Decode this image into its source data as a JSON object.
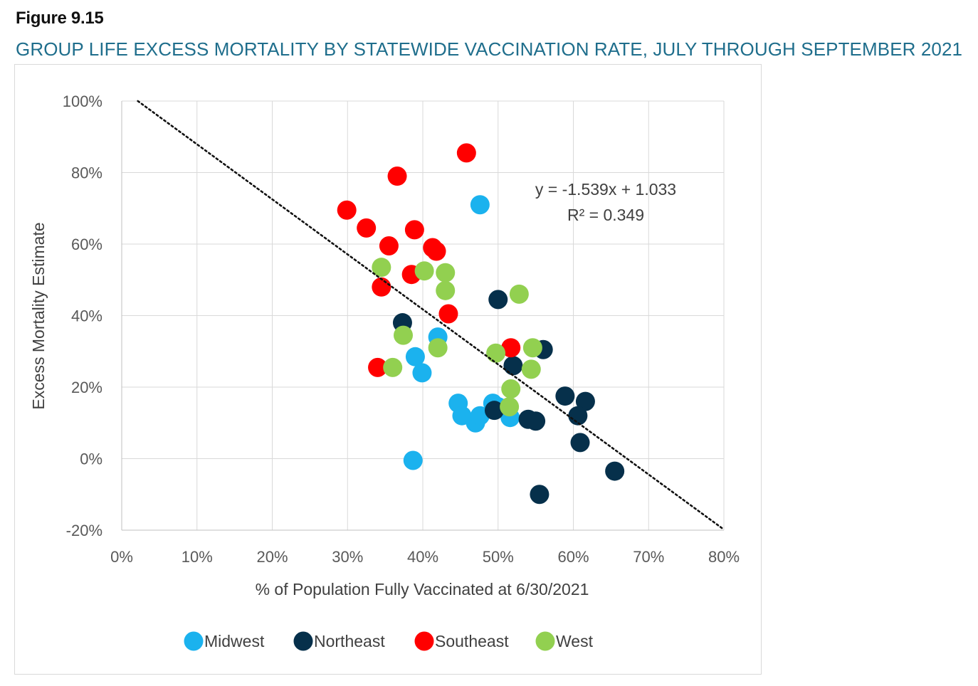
{
  "figure": {
    "label": "Figure 9.15",
    "title": "GROUP LIFE EXCESS MORTALITY BY STATEWIDE VACCINATION RATE, JULY THROUGH SEPTEMBER 2021"
  },
  "chart_data": {
    "type": "scatter",
    "title": "GROUP LIFE EXCESS MORTALITY BY STATEWIDE VACCINATION RATE, JULY THROUGH SEPTEMBER 2021",
    "xlabel": "% of Population Fully Vaccinated at 6/30/2021",
    "ylabel": "Excess Mortality Estimate",
    "xlim": [
      0,
      0.8
    ],
    "ylim": [
      -0.2,
      1.0
    ],
    "x_ticks": [
      0,
      0.1,
      0.2,
      0.3,
      0.4,
      0.5,
      0.6,
      0.7,
      0.8
    ],
    "x_tick_labels": [
      "0%",
      "10%",
      "20%",
      "30%",
      "40%",
      "50%",
      "60%",
      "70%",
      "80%"
    ],
    "y_ticks": [
      -0.2,
      0,
      0.2,
      0.4,
      0.6,
      0.8,
      1.0
    ],
    "y_tick_labels": [
      "-20%",
      "0%",
      "20%",
      "40%",
      "60%",
      "80%",
      "100%"
    ],
    "grid": true,
    "legend_position": "bottom",
    "trendline": {
      "slope": -1.539,
      "intercept": 1.033,
      "equation_label": "y = -1.539x + 1.033",
      "r2_label": "R² = 0.349",
      "style": "dotted",
      "color": "#111111"
    },
    "series": [
      {
        "name": "Midwest",
        "color": "#1bb2ee",
        "points": [
          [
            0.476,
            0.71
          ],
          [
            0.42,
            0.34
          ],
          [
            0.39,
            0.285
          ],
          [
            0.399,
            0.24
          ],
          [
            0.447,
            0.155
          ],
          [
            0.452,
            0.12
          ],
          [
            0.47,
            0.1
          ],
          [
            0.476,
            0.12
          ],
          [
            0.493,
            0.155
          ],
          [
            0.5,
            0.145
          ],
          [
            0.516,
            0.115
          ],
          [
            0.387,
            -0.005
          ]
        ]
      },
      {
        "name": "Northeast",
        "color": "#06304b",
        "points": [
          [
            0.5,
            0.445
          ],
          [
            0.373,
            0.38
          ],
          [
            0.56,
            0.305
          ],
          [
            0.52,
            0.26
          ],
          [
            0.589,
            0.175
          ],
          [
            0.616,
            0.16
          ],
          [
            0.606,
            0.12
          ],
          [
            0.495,
            0.135
          ],
          [
            0.54,
            0.11
          ],
          [
            0.55,
            0.105
          ],
          [
            0.609,
            0.045
          ],
          [
            0.655,
            -0.035
          ],
          [
            0.555,
            -0.1
          ]
        ]
      },
      {
        "name": "Southeast",
        "color": "#ff0000",
        "points": [
          [
            0.458,
            0.855
          ],
          [
            0.366,
            0.79
          ],
          [
            0.299,
            0.695
          ],
          [
            0.325,
            0.645
          ],
          [
            0.355,
            0.595
          ],
          [
            0.389,
            0.64
          ],
          [
            0.413,
            0.59
          ],
          [
            0.418,
            0.58
          ],
          [
            0.385,
            0.515
          ],
          [
            0.345,
            0.48
          ],
          [
            0.434,
            0.405
          ],
          [
            0.517,
            0.31
          ],
          [
            0.34,
            0.255
          ]
        ]
      },
      {
        "name": "West",
        "color": "#92d050",
        "points": [
          [
            0.345,
            0.535
          ],
          [
            0.402,
            0.525
          ],
          [
            0.43,
            0.52
          ],
          [
            0.43,
            0.47
          ],
          [
            0.528,
            0.46
          ],
          [
            0.374,
            0.345
          ],
          [
            0.42,
            0.31
          ],
          [
            0.36,
            0.255
          ],
          [
            0.497,
            0.295
          ],
          [
            0.546,
            0.31
          ],
          [
            0.544,
            0.25
          ],
          [
            0.517,
            0.195
          ],
          [
            0.515,
            0.145
          ]
        ]
      }
    ]
  }
}
